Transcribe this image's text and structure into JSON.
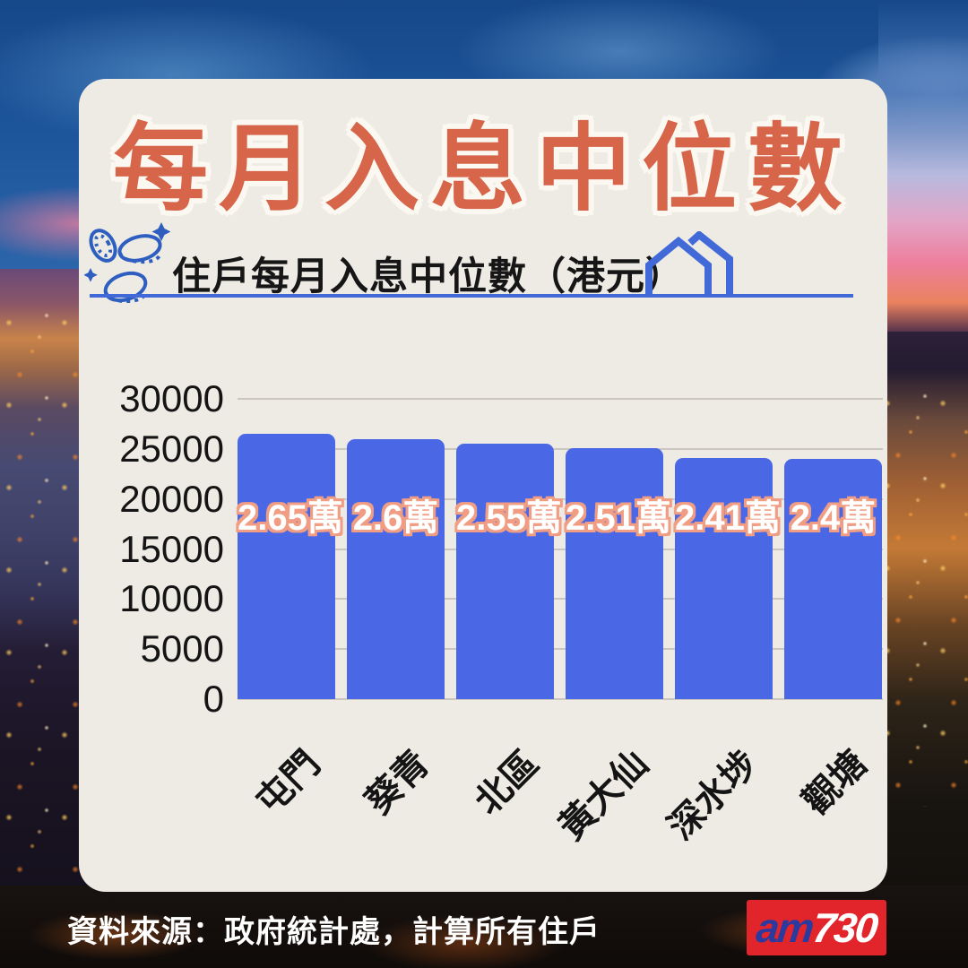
{
  "title": "每月入息中位數",
  "subtitle": "住戶每月入息中位數（港元）",
  "source_note": "資料來源：政府統計處，計算所有住戶",
  "logo": {
    "prefix": "am",
    "suffix": "730"
  },
  "icons": {
    "left_of_subtitle": "coins-sparkle-icon",
    "right_of_subtitle": "double-house-icon"
  },
  "colors": {
    "card_background": "#eeebe4",
    "title_orange": "#d6654a",
    "bar_blue": "#4a68e6",
    "underline_blue": "#4169d8",
    "coin_blue": "#2e5fc0",
    "bar_label_outline": "#f09d84",
    "gridline_gray": "#cbc7c0",
    "logo_red": "#e2242b",
    "logo_blue": "#2b3a9e"
  },
  "chart_data": {
    "type": "bar",
    "title": "住戶每月入息中位數（港元）",
    "categories": [
      "屯門",
      "葵青",
      "北區",
      "黃大仙",
      "深水埗",
      "觀塘"
    ],
    "values": [
      26500,
      26000,
      25500,
      25100,
      24100,
      24000
    ],
    "bar_labels": [
      "2.65萬",
      "2.6萬",
      "2.55萬",
      "2.51萬",
      "2.41萬",
      "2.4萬"
    ],
    "xlabel": "",
    "ylabel": "",
    "ylim": [
      0,
      30000
    ],
    "yticks": [
      30000,
      25000,
      20000,
      15000,
      10000,
      5000,
      0
    ],
    "grid": true,
    "legend": "none",
    "bar_color": "#4a68e6"
  }
}
